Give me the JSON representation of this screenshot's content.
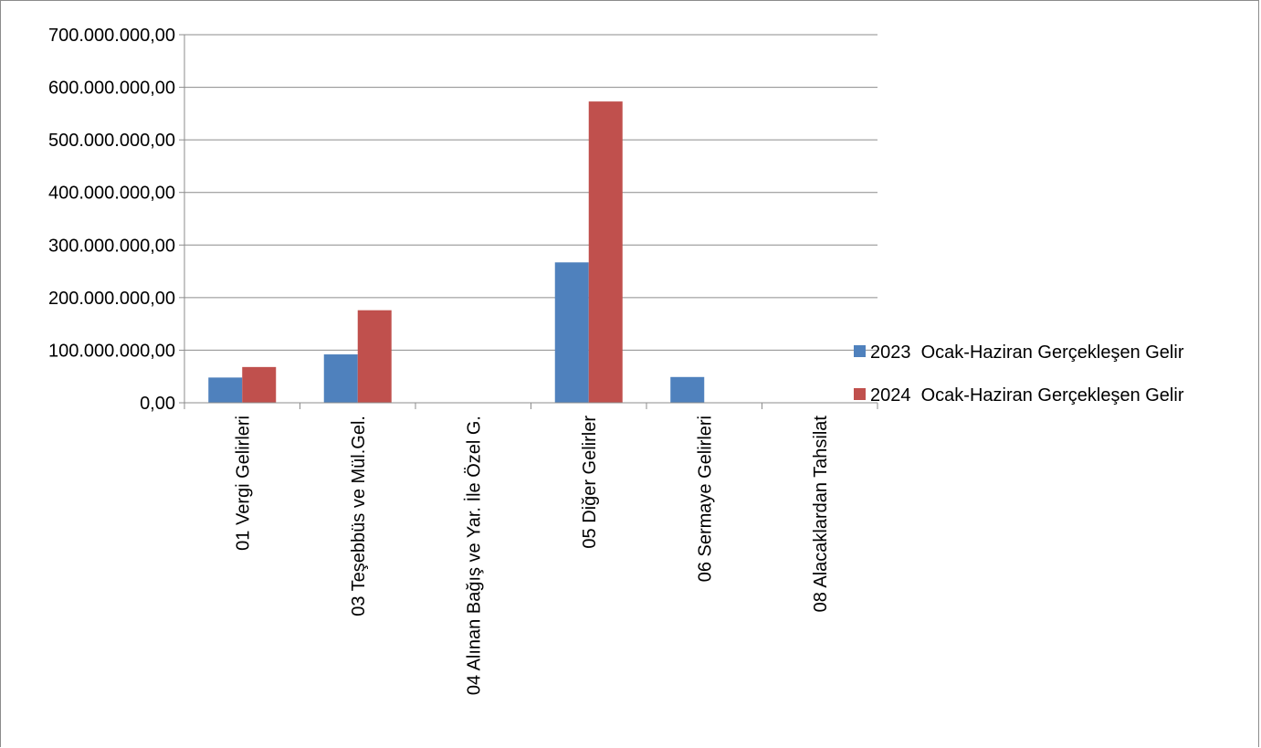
{
  "chart_data": {
    "type": "bar",
    "title": "",
    "xlabel": "",
    "ylabel": "",
    "categories": [
      "01 Vergi Gelirleri",
      "03 Teşebbüs ve Mül.Gel.",
      "04 Alınan Bağış ve Yar. İle Özel G.",
      "05 Diğer Gelirler",
      "06 Sermaye Gelirleri",
      "08 Alacaklardan Tahsilat"
    ],
    "series": [
      {
        "name": "2023  Ocak-Haziran Gerçekleşen Gelir",
        "color": "#4f81bd",
        "values": [
          48000000,
          92000000,
          0,
          267000000,
          49000000,
          0
        ]
      },
      {
        "name": "2024  Ocak-Haziran Gerçekleşen Gelir",
        "color": "#c0504d",
        "values": [
          68000000,
          176000000,
          0,
          573000000,
          0,
          0
        ]
      }
    ],
    "ylim": [
      0,
      700000000
    ],
    "yticks": [
      0,
      100000000,
      200000000,
      300000000,
      400000000,
      500000000,
      600000000,
      700000000
    ],
    "ytick_labels": [
      "0,00",
      "100.000.000,00",
      "200.000.000,00",
      "300.000.000,00",
      "400.000.000,00",
      "500.000.000,00",
      "600.000.000,00",
      "700.000.000,00"
    ],
    "grid": true,
    "legend_position": "right"
  }
}
